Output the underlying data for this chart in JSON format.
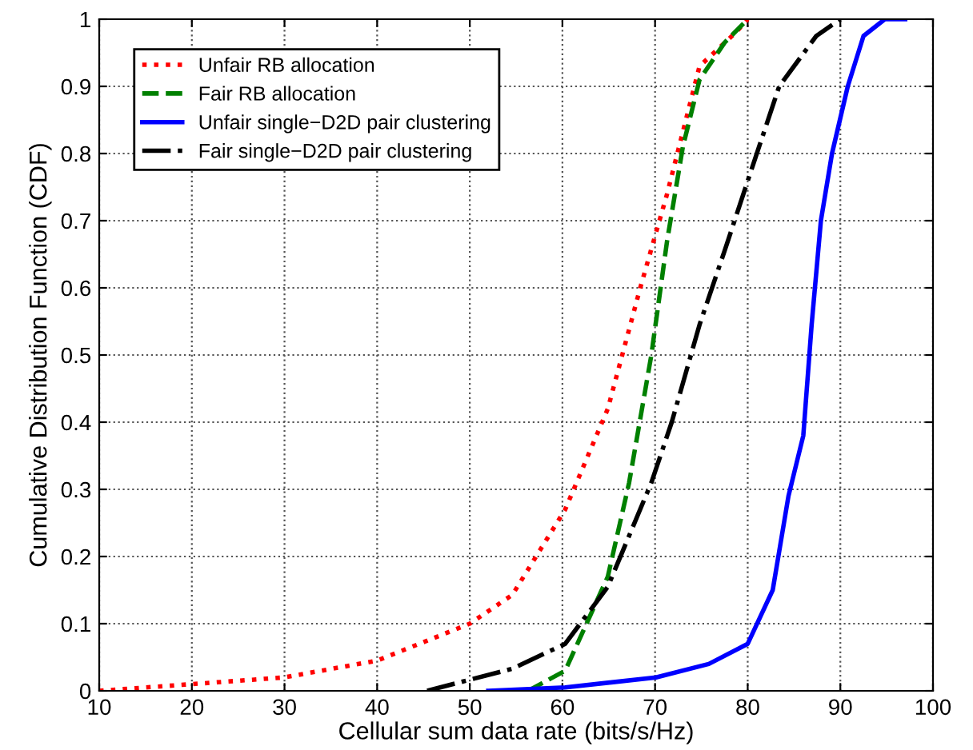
{
  "chart_data": {
    "type": "line",
    "xlabel": "Cellular sum data rate (bits/s/Hz)",
    "ylabel": "Cumulative Distribution Function (CDF)",
    "xlim": [
      10,
      100
    ],
    "ylim": [
      0,
      1
    ],
    "xticks": [
      10,
      20,
      30,
      40,
      50,
      60,
      70,
      80,
      90,
      100
    ],
    "yticks": [
      0,
      0.1,
      0.2,
      0.3,
      0.4,
      0.5,
      0.6,
      0.7,
      0.8,
      0.9,
      1
    ],
    "grid": true,
    "legend": "top left",
    "series": [
      {
        "name": "Unfair RB allocation",
        "color": "#ff0000",
        "line_style": "dotted",
        "x": [
          10,
          20,
          30,
          40,
          50,
          54.6,
          60.3,
          64.9,
          68.4,
          71.3,
          74.8,
          78.7,
          80
        ],
        "values": [
          0,
          0.01,
          0.02,
          0.045,
          0.1,
          0.143,
          0.27,
          0.42,
          0.6,
          0.74,
          0.93,
          0.98,
          1
        ]
      },
      {
        "name": "Fair RB allocation",
        "color": "#008000",
        "line_style": "dashed",
        "x": [
          56.3,
          60.3,
          64.9,
          67.2,
          69.6,
          71.3,
          73,
          74.8,
          77.5,
          80
        ],
        "values": [
          0,
          0.03,
          0.17,
          0.31,
          0.5,
          0.67,
          0.81,
          0.91,
          0.965,
          1
        ]
      },
      {
        "name": "Unfair single−D2D pair clustering",
        "color": "#0000ff",
        "line_style": "solid",
        "x": [
          52,
          60.3,
          70.1,
          75.8,
          80,
          82.7,
          84.4,
          86,
          86.9,
          87.9,
          89.1,
          90.8,
          92.5,
          94.8,
          97
        ],
        "values": [
          0,
          0.005,
          0.02,
          0.04,
          0.07,
          0.15,
          0.29,
          0.38,
          0.545,
          0.7,
          0.8,
          0.9,
          0.975,
          1,
          1
        ]
      },
      {
        "name": "Fair single−D2D pair clustering",
        "color": "#000000",
        "line_style": "dashdot",
        "x": [
          45.4,
          54.6,
          60.3,
          64.9,
          69.6,
          71.8,
          74.8,
          77.5,
          80.5,
          83.4,
          87.4,
          90
        ],
        "values": [
          0,
          0.033,
          0.07,
          0.155,
          0.31,
          0.4,
          0.545,
          0.655,
          0.78,
          0.9,
          0.975,
          1
        ]
      }
    ]
  }
}
